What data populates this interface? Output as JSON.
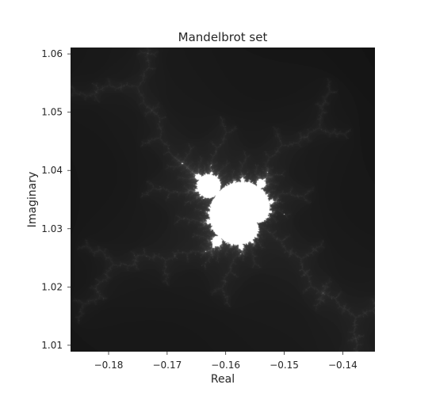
{
  "chart_data": {
    "type": "heatmap",
    "title": "Mandelbrot set",
    "xlabel": "Real",
    "ylabel": "Imaginary",
    "xlim": [
      -0.1865,
      -0.1345
    ],
    "ylim": [
      1.0089,
      1.0611
    ],
    "x_ticks": [
      -0.18,
      -0.17,
      -0.16,
      -0.15,
      -0.14
    ],
    "x_tick_labels": [
      "−0.18",
      "−0.17",
      "−0.16",
      "−0.15",
      "−0.14"
    ],
    "y_ticks": [
      1.01,
      1.02,
      1.03,
      1.04,
      1.05,
      1.06
    ],
    "y_tick_labels": [
      "1.01",
      "1.02",
      "1.03",
      "1.04",
      "1.05",
      "1.06"
    ],
    "grid": false,
    "colormap": "gray",
    "background_color": "#000000",
    "set_color": "#ffffff"
  }
}
